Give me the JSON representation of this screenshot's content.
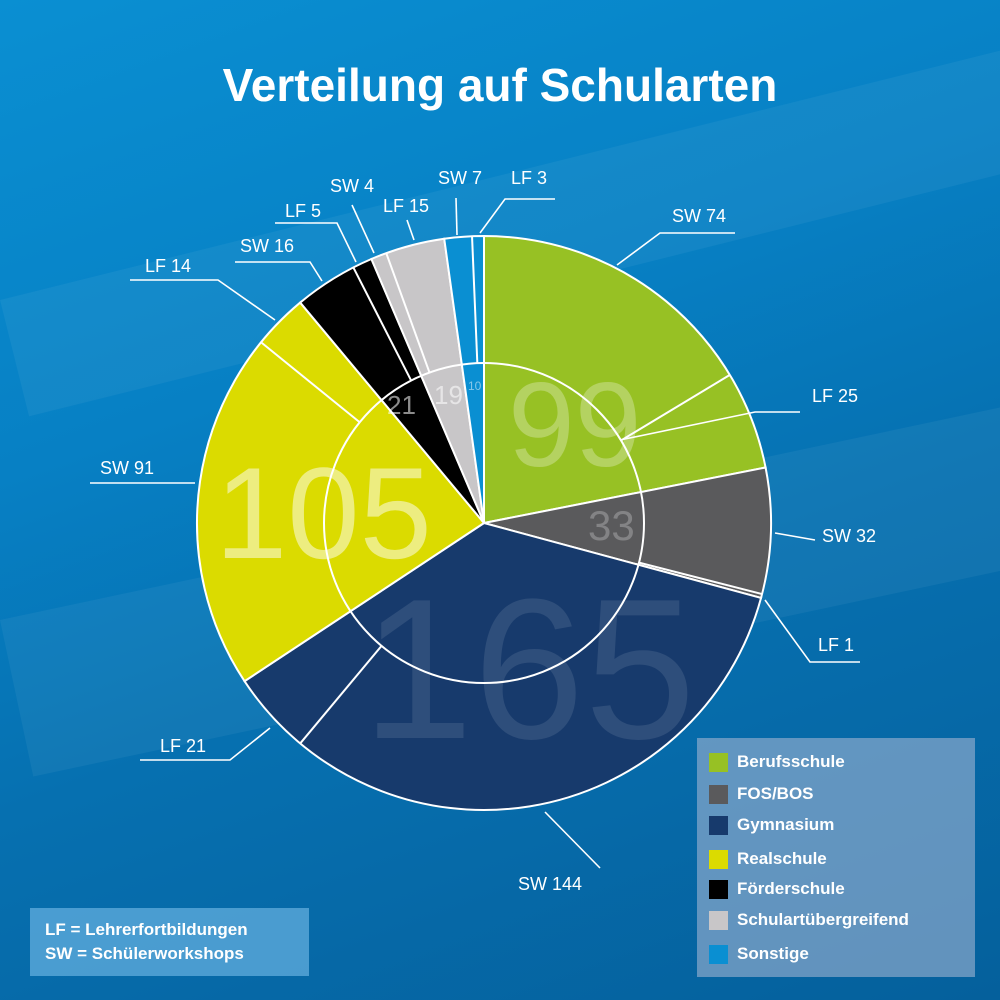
{
  "chart_data": {
    "type": "pie",
    "title": "Verteilung auf Schularten",
    "categories": [
      {
        "name": "Berufsschule",
        "total": 99,
        "color": "#97c124",
        "parts": [
          {
            "label": "SW 74",
            "value": 74
          },
          {
            "label": "LF 25",
            "value": 25
          }
        ]
      },
      {
        "name": "FOS/BOS",
        "total": 33,
        "color": "#5a5a5c",
        "parts": [
          {
            "label": "SW 32",
            "value": 32
          },
          {
            "label": "LF 1",
            "value": 1
          }
        ]
      },
      {
        "name": "Gymnasium",
        "total": 165,
        "color": "#173a6c",
        "parts": [
          {
            "label": "SW 144",
            "value": 144
          },
          {
            "label": "LF 21",
            "value": 21
          }
        ]
      },
      {
        "name": "Realschule",
        "total": 105,
        "color": "#dbdb00",
        "parts": [
          {
            "label": "SW 91",
            "value": 91
          },
          {
            "label": "LF 14",
            "value": 14
          }
        ]
      },
      {
        "name": "Förderschule",
        "total": 21,
        "color": "#000000",
        "parts": [
          {
            "label": "SW 16",
            "value": 16
          },
          {
            "label": "LF 5",
            "value": 5
          }
        ]
      },
      {
        "name": "Schulartübergreifend",
        "total": 19,
        "color": "#c8c6c8",
        "parts": [
          {
            "label": "SW 4",
            "value": 4
          },
          {
            "label": "LF 15",
            "value": 15
          }
        ]
      },
      {
        "name": "Sonstige",
        "total": 10,
        "color": "#0a8fd2",
        "parts": [
          {
            "label": "SW 7",
            "value": 7
          },
          {
            "label": "LF 3",
            "value": 3
          }
        ]
      }
    ],
    "legend_position": "bottom-right"
  },
  "note": {
    "line1": "LF = Lehrerfortbildungen",
    "line2": "SW = Schülerworkshops"
  }
}
